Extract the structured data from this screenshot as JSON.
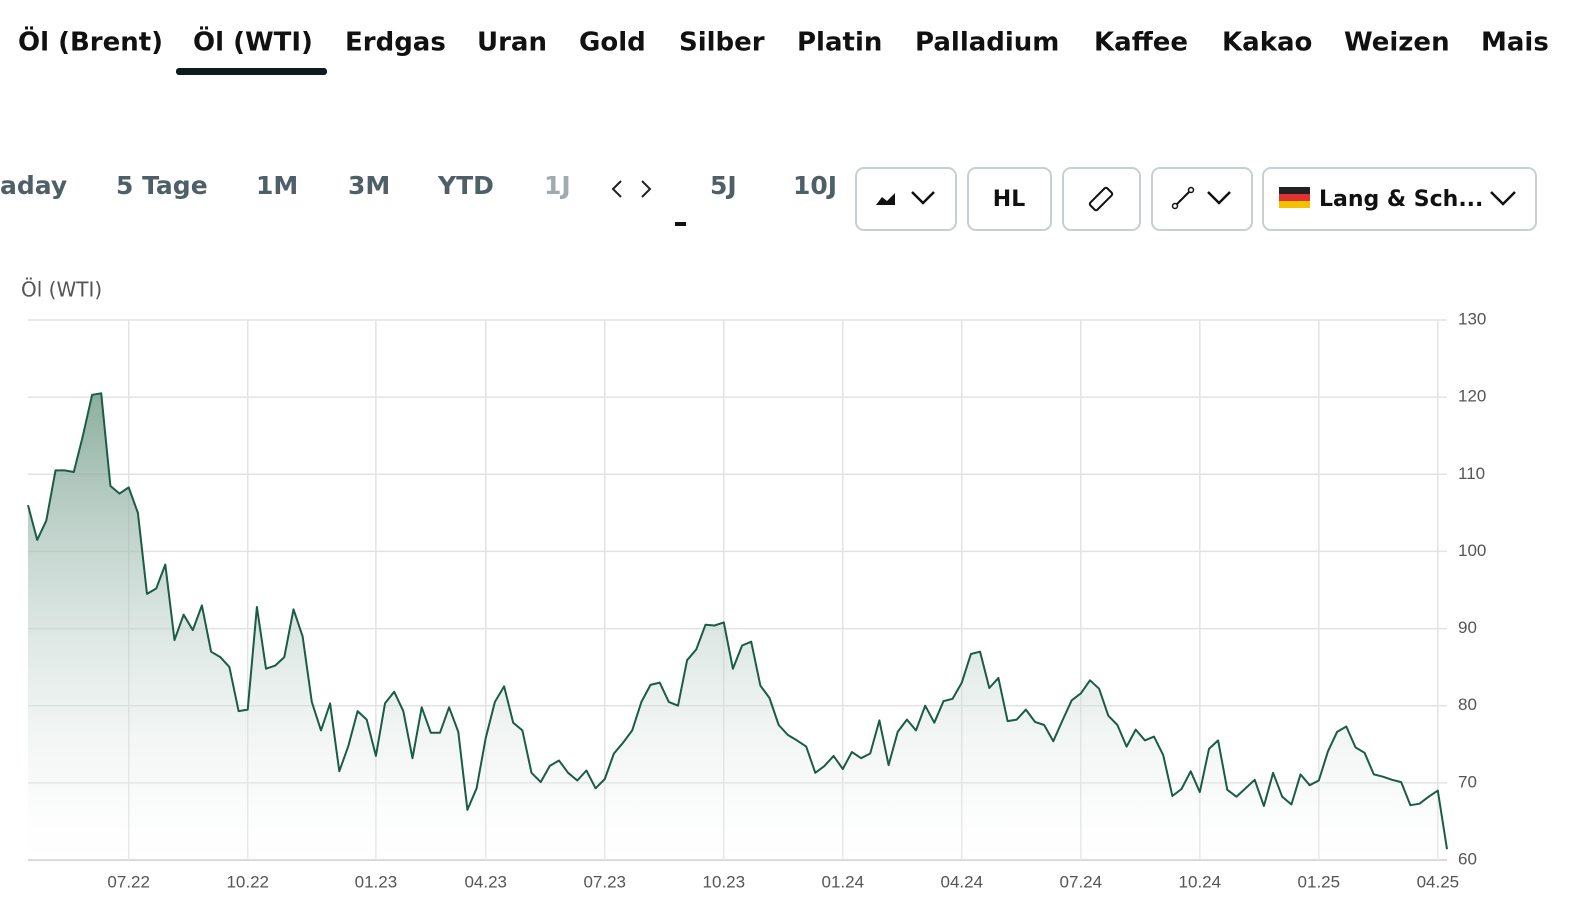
{
  "tabs": [
    "Öl (Brent)",
    "Öl (WTI)",
    "Erdgas",
    "Uran",
    "Gold",
    "Silber",
    "Platin",
    "Palladium",
    "Kaffee",
    "Kakao",
    "Weizen",
    "Mais"
  ],
  "ranges": [
    "aday",
    "5 Tage",
    "1M",
    "3M",
    "YTD",
    "1J",
    "5J",
    "10J"
  ],
  "toolbar": {
    "hl": "HL",
    "exchange": "Lang & Sch..."
  },
  "chart_data": {
    "type": "area",
    "title": "Öl (WTI)",
    "color": "#1a5c45",
    "categories": [
      null,
      null,
      null,
      null,
      null,
      null,
      null,
      null,
      null,
      null,
      null,
      "07.22",
      null,
      null,
      null,
      null,
      null,
      null,
      null,
      null,
      null,
      null,
      null,
      null,
      "10.22",
      null,
      null,
      null,
      null,
      null,
      null,
      null,
      null,
      null,
      null,
      null,
      null,
      null,
      "01.23",
      null,
      null,
      null,
      null,
      null,
      null,
      null,
      null,
      null,
      null,
      null,
      "04.23",
      null,
      null,
      null,
      null,
      null,
      null,
      null,
      null,
      null,
      null,
      null,
      null,
      "07.23",
      null,
      null,
      null,
      null,
      null,
      null,
      null,
      null,
      null,
      null,
      null,
      null,
      "10.23",
      null,
      null,
      null,
      null,
      null,
      null,
      null,
      null,
      null,
      null,
      null,
      null,
      "01.24",
      null,
      null,
      null,
      null,
      null,
      null,
      null,
      null,
      null,
      null,
      null,
      null,
      "04.24",
      null,
      null,
      null,
      null,
      null,
      null,
      null,
      null,
      null,
      null,
      null,
      null,
      "07.24",
      null,
      null,
      null,
      null,
      null,
      null,
      null,
      null,
      null,
      null,
      null,
      null,
      "10.24",
      null,
      null,
      null,
      null,
      null,
      null,
      null,
      null,
      null,
      null,
      null,
      null,
      "01.25",
      null,
      null,
      null,
      null,
      null,
      null,
      null,
      null,
      null,
      null,
      null,
      null,
      "04.25",
      null
    ],
    "values": [
      106,
      101.5,
      104,
      110.5,
      110.5,
      110.3,
      115,
      120.3,
      120.5,
      108.5,
      107.5,
      108.3,
      105,
      94.5,
      95.2,
      98.3,
      88.5,
      91.8,
      89.8,
      93,
      87,
      86.3,
      85,
      79.3,
      79.5,
      92.8,
      84.8,
      85.2,
      86.3,
      92.5,
      89,
      80.5,
      76.8,
      80.3,
      71.5,
      74.8,
      79.3,
      78.2,
      73.5,
      80.3,
      81.8,
      79.3,
      73.2,
      79.8,
      76.5,
      76.5,
      79.8,
      76.6,
      66.5,
      69.3,
      75.8,
      80.5,
      82.5,
      77.8,
      76.8,
      71.3,
      70.1,
      72.2,
      72.9,
      71.3,
      70.3,
      71.6,
      69.3,
      70.5,
      73.8,
      75.2,
      76.8,
      80.5,
      82.7,
      83,
      80.5,
      80,
      85.9,
      87.3,
      90.5,
      90.4,
      90.8,
      84.8,
      87.8,
      88.3,
      82.6,
      81,
      77.5,
      76.2,
      75.5,
      74.7,
      71.3,
      72.2,
      73.5,
      71.8,
      74,
      73.2,
      73.8,
      78.1,
      72.3,
      76.6,
      78.2,
      76.8,
      80,
      77.8,
      80.6,
      80.9,
      83,
      86.7,
      87,
      82.3,
      83.6,
      78,
      78.2,
      79.5,
      77.9,
      77.5,
      75.4,
      78.1,
      80.7,
      81.6,
      83.3,
      82.2,
      78.7,
      77.5,
      74.7,
      76.9,
      75.5,
      76,
      73.6,
      68.3,
      69.2,
      71.5,
      68.8,
      74.4,
      75.5,
      69.1,
      68.2,
      69.3,
      70.4,
      67,
      71.3,
      68.2,
      67.2,
      71.1,
      69.7,
      70.3,
      74.1,
      76.6,
      77.3,
      74.6,
      73.9,
      71.1,
      70.8,
      70.4,
      70.1,
      67.1,
      67.3,
      68.2,
      69,
      61.4
    ],
    "ylim": [
      60,
      130
    ],
    "yticks": [
      60,
      70,
      80,
      90,
      100,
      110,
      120,
      130
    ],
    "grid": true
  }
}
